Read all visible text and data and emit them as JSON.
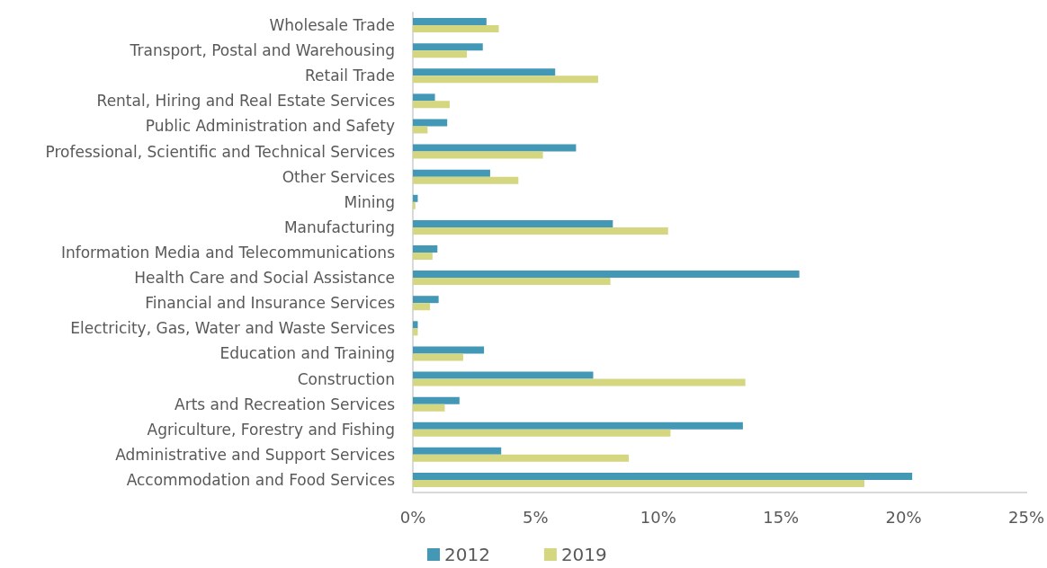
{
  "chart_data": {
    "type": "bar",
    "orientation": "horizontal",
    "categories": [
      "Wholesale Trade",
      "Transport, Postal and Warehousing",
      "Retail Trade",
      "Rental, Hiring and Real Estate Services",
      "Public Administration and Safety",
      "Professional, Scientific and Technical Services",
      "Other Services",
      "Mining",
      "Manufacturing",
      "Information Media and Telecommunications",
      "Health Care and Social Assistance",
      "Financial and Insurance Services",
      "Electricity, Gas, Water and Waste Services",
      "Education and Training",
      "Construction",
      "Arts and Recreation Services",
      "Agriculture, Forestry and Fishing",
      "Administrative and Support Services",
      "Accommodation and Food Services"
    ],
    "series": [
      {
        "name": "2012",
        "color": "#4398b6",
        "values": [
          3.0,
          2.85,
          5.8,
          0.9,
          1.4,
          6.65,
          3.15,
          0.2,
          8.15,
          1.0,
          15.75,
          1.05,
          0.2,
          2.9,
          7.35,
          1.9,
          13.45,
          3.6,
          20.35
        ]
      },
      {
        "name": "2019",
        "color": "#d4d680",
        "values": [
          3.5,
          2.2,
          7.55,
          1.5,
          0.6,
          5.3,
          4.3,
          0.1,
          10.4,
          0.8,
          8.05,
          0.7,
          0.2,
          2.05,
          13.55,
          1.3,
          10.5,
          8.8,
          18.4
        ]
      }
    ],
    "xlim": [
      0,
      25
    ],
    "xticks": [
      {
        "value": 0,
        "label": "0%"
      },
      {
        "value": 5,
        "label": "5%"
      },
      {
        "value": 10,
        "label": "10%"
      },
      {
        "value": 15,
        "label": "15%"
      },
      {
        "value": 20,
        "label": "20%"
      },
      {
        "value": 25,
        "label": "25%"
      }
    ],
    "grid": false,
    "legend": "bottom"
  }
}
